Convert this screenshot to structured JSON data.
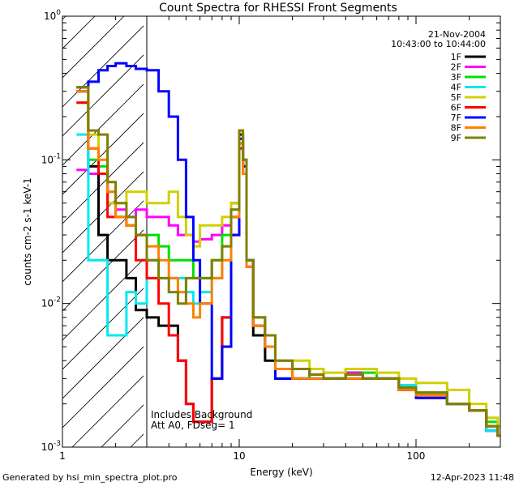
{
  "chart_data": {
    "type": "line",
    "title": "Count Spectra for RHESSI Front Segments",
    "xlabel": "Energy (keV)",
    "ylabel": "counts cm-2 s-1 keV-1",
    "xscale": "log",
    "yscale": "log",
    "xlim": [
      1,
      300
    ],
    "ylim": [
      0.001,
      1
    ],
    "x_tick_labels": [
      "1",
      "10",
      "100"
    ],
    "y_tick_labels": [
      "10-3",
      "10-2",
      "10-1",
      "10 0"
    ],
    "legend_position": "top-right",
    "date": "21-Nov-2004",
    "time_range": "10:43:00 to 10:44:00",
    "annotations": {
      "line1": "Includes Background",
      "line2": "Att A0, FDseg= 1"
    },
    "hatched_region_kev": [
      1,
      3
    ],
    "series": [
      {
        "name": "1F",
        "color": "#000000",
        "x": [
          1.2,
          1.4,
          1.6,
          1.8,
          2.0,
          2.3,
          2.6,
          3.0,
          3.5,
          4.0,
          4.5,
          5.0,
          5.5,
          6.0,
          7.0,
          8.0,
          9.0,
          10.0,
          10.5,
          11.0,
          12,
          14,
          16,
          20,
          25,
          30,
          40,
          50,
          60,
          80,
          100,
          150,
          200,
          250,
          290
        ],
        "values": [
          0.3,
          0.09,
          0.03,
          0.02,
          0.02,
          0.015,
          0.009,
          0.008,
          0.007,
          0.007,
          0.004,
          0.002,
          0.0015,
          0.0015,
          0.003,
          0.008,
          0.04,
          0.15,
          0.1,
          0.02,
          0.006,
          0.004,
          0.003,
          0.003,
          0.0035,
          0.003,
          0.0033,
          0.003,
          0.003,
          0.0025,
          0.0024,
          0.002,
          0.0018,
          0.0013,
          0.0012
        ]
      },
      {
        "name": "2F",
        "color": "#ff00ff",
        "x": [
          1.2,
          1.4,
          1.6,
          1.8,
          2.0,
          2.3,
          2.6,
          3.0,
          3.5,
          4.0,
          4.5,
          5.0,
          5.5,
          6.0,
          7.0,
          8.0,
          9.0,
          10.0,
          10.5,
          11.0,
          12,
          14,
          16,
          20,
          25,
          30,
          40,
          50,
          60,
          80,
          100,
          150,
          200,
          250,
          290
        ],
        "values": [
          0.085,
          0.08,
          0.08,
          0.06,
          0.045,
          0.04,
          0.045,
          0.04,
          0.04,
          0.035,
          0.03,
          0.03,
          0.027,
          0.028,
          0.03,
          0.035,
          0.05,
          0.12,
          0.08,
          0.018,
          0.008,
          0.006,
          0.004,
          0.0035,
          0.0032,
          0.003,
          0.0033,
          0.003,
          0.003,
          0.0025,
          0.0024,
          0.002,
          0.0018,
          0.0014,
          0.0012
        ]
      },
      {
        "name": "3F",
        "color": "#00e000",
        "x": [
          1.2,
          1.4,
          1.6,
          1.8,
          2.0,
          2.3,
          2.6,
          3.0,
          3.5,
          4.0,
          4.5,
          5.0,
          5.5,
          6.0,
          7.0,
          8.0,
          9.0,
          10.0,
          10.5,
          11.0,
          12,
          14,
          16,
          20,
          25,
          30,
          40,
          50,
          60,
          80,
          100,
          150,
          200,
          250,
          290
        ],
        "values": [
          0.25,
          0.1,
          0.09,
          0.05,
          0.04,
          0.035,
          0.03,
          0.03,
          0.025,
          0.02,
          0.02,
          0.02,
          0.015,
          0.015,
          0.02,
          0.03,
          0.05,
          0.13,
          0.09,
          0.02,
          0.008,
          0.005,
          0.0035,
          0.0035,
          0.003,
          0.003,
          0.0032,
          0.0033,
          0.003,
          0.0025,
          0.0024,
          0.002,
          0.0018,
          0.0015,
          0.0012
        ]
      },
      {
        "name": "4F",
        "color": "#00e8f0",
        "x": [
          1.2,
          1.4,
          1.6,
          1.8,
          2.0,
          2.3,
          2.6,
          3.0,
          3.5,
          4.0,
          4.5,
          5.0,
          5.5,
          6.0,
          7.0,
          8.0,
          9.0,
          10.0,
          10.5,
          11.0,
          12,
          14,
          16,
          20,
          25,
          30,
          40,
          50,
          60,
          80,
          100,
          150,
          200,
          250,
          290
        ],
        "values": [
          0.15,
          0.02,
          0.02,
          0.006,
          0.006,
          0.012,
          0.01,
          0.02,
          0.015,
          0.015,
          0.015,
          0.012,
          0.01,
          0.012,
          0.015,
          0.025,
          0.045,
          0.14,
          0.09,
          0.02,
          0.008,
          0.005,
          0.0035,
          0.003,
          0.003,
          0.003,
          0.003,
          0.003,
          0.003,
          0.0027,
          0.0024,
          0.002,
          0.0018,
          0.0013,
          0.0012
        ]
      },
      {
        "name": "5F",
        "color": "#d0d000",
        "x": [
          1.2,
          1.4,
          1.6,
          1.8,
          2.0,
          2.3,
          2.6,
          3.0,
          3.5,
          4.0,
          4.5,
          5.0,
          5.5,
          6.0,
          7.0,
          8.0,
          9.0,
          10.0,
          10.5,
          11.0,
          12,
          14,
          16,
          20,
          25,
          30,
          40,
          50,
          60,
          80,
          100,
          150,
          200,
          250,
          290
        ],
        "values": [
          0.32,
          0.15,
          0.08,
          0.05,
          0.05,
          0.06,
          0.06,
          0.05,
          0.05,
          0.06,
          0.04,
          0.03,
          0.025,
          0.035,
          0.035,
          0.04,
          0.05,
          0.16,
          0.1,
          0.02,
          0.008,
          0.006,
          0.004,
          0.004,
          0.0035,
          0.0033,
          0.0035,
          0.0035,
          0.0033,
          0.003,
          0.0028,
          0.0025,
          0.002,
          0.0016,
          0.0014
        ]
      },
      {
        "name": "6F",
        "color": "#ff0000",
        "x": [
          1.2,
          1.4,
          1.6,
          1.8,
          2.0,
          2.3,
          2.6,
          3.0,
          3.5,
          4.0,
          4.5,
          5.0,
          5.5,
          6.0,
          7.0,
          8.0,
          9.0,
          10.0,
          10.5,
          11.0,
          12,
          14,
          16,
          20,
          25,
          30,
          40,
          50,
          60,
          80,
          100,
          150,
          200,
          250,
          290
        ],
        "values": [
          0.25,
          0.12,
          0.08,
          0.04,
          0.04,
          0.035,
          0.02,
          0.015,
          0.01,
          0.006,
          0.004,
          0.002,
          0.0015,
          0.0015,
          0.003,
          0.008,
          0.03,
          0.12,
          0.08,
          0.018,
          0.007,
          0.005,
          0.0035,
          0.003,
          0.003,
          0.003,
          0.003,
          0.003,
          0.003,
          0.0025,
          0.0022,
          0.002,
          0.0018,
          0.0014,
          0.0012
        ]
      },
      {
        "name": "7F",
        "color": "#0000ff",
        "x": [
          1.2,
          1.4,
          1.6,
          1.8,
          2.0,
          2.3,
          2.6,
          3.0,
          3.5,
          4.0,
          4.5,
          5.0,
          5.5,
          6.0,
          7.0,
          8.0,
          9.0,
          10.0,
          10.5,
          11.0,
          12,
          14,
          16,
          20,
          25,
          30,
          40,
          50,
          60,
          80,
          100,
          150,
          200,
          250,
          290
        ],
        "values": [
          0.32,
          0.35,
          0.42,
          0.45,
          0.47,
          0.45,
          0.43,
          0.42,
          0.3,
          0.2,
          0.1,
          0.04,
          0.02,
          0.01,
          0.003,
          0.005,
          0.03,
          0.14,
          0.09,
          0.02,
          0.007,
          0.005,
          0.003,
          0.003,
          0.003,
          0.003,
          0.003,
          0.003,
          0.003,
          0.0025,
          0.0022,
          0.002,
          0.0018,
          0.0014,
          0.0012
        ]
      },
      {
        "name": "8F",
        "color": "#ff8000",
        "x": [
          1.2,
          1.4,
          1.6,
          1.8,
          2.0,
          2.3,
          2.6,
          3.0,
          3.5,
          4.0,
          4.5,
          5.0,
          5.5,
          6.0,
          7.0,
          8.0,
          9.0,
          10.0,
          10.5,
          11.0,
          12,
          14,
          16,
          20,
          25,
          30,
          40,
          50,
          60,
          80,
          100,
          150,
          200,
          250,
          290
        ],
        "values": [
          0.3,
          0.12,
          0.1,
          0.06,
          0.04,
          0.035,
          0.03,
          0.025,
          0.02,
          0.015,
          0.012,
          0.01,
          0.008,
          0.01,
          0.015,
          0.02,
          0.04,
          0.13,
          0.08,
          0.018,
          0.007,
          0.005,
          0.0035,
          0.003,
          0.003,
          0.003,
          0.003,
          0.003,
          0.003,
          0.0025,
          0.0023,
          0.002,
          0.0018,
          0.0014,
          0.0012
        ]
      },
      {
        "name": "9F",
        "color": "#808000",
        "x": [
          1.2,
          1.4,
          1.6,
          1.8,
          2.0,
          2.3,
          2.6,
          3.0,
          3.5,
          4.0,
          4.5,
          5.0,
          5.5,
          6.0,
          7.0,
          8.0,
          9.0,
          10.0,
          10.5,
          11.0,
          12,
          14,
          16,
          20,
          25,
          30,
          40,
          50,
          60,
          80,
          100,
          150,
          200,
          250,
          290
        ],
        "values": [
          0.32,
          0.16,
          0.15,
          0.07,
          0.05,
          0.04,
          0.03,
          0.02,
          0.015,
          0.012,
          0.01,
          0.015,
          0.015,
          0.015,
          0.02,
          0.025,
          0.045,
          0.16,
          0.1,
          0.02,
          0.008,
          0.006,
          0.004,
          0.0035,
          0.0032,
          0.003,
          0.0032,
          0.003,
          0.003,
          0.0026,
          0.0024,
          0.002,
          0.0018,
          0.0014,
          0.0012
        ]
      }
    ]
  },
  "footer": {
    "generated_by": "Generated by hsi_min_spectra_plot.pro",
    "timestamp": "12-Apr-2023 11:48"
  }
}
